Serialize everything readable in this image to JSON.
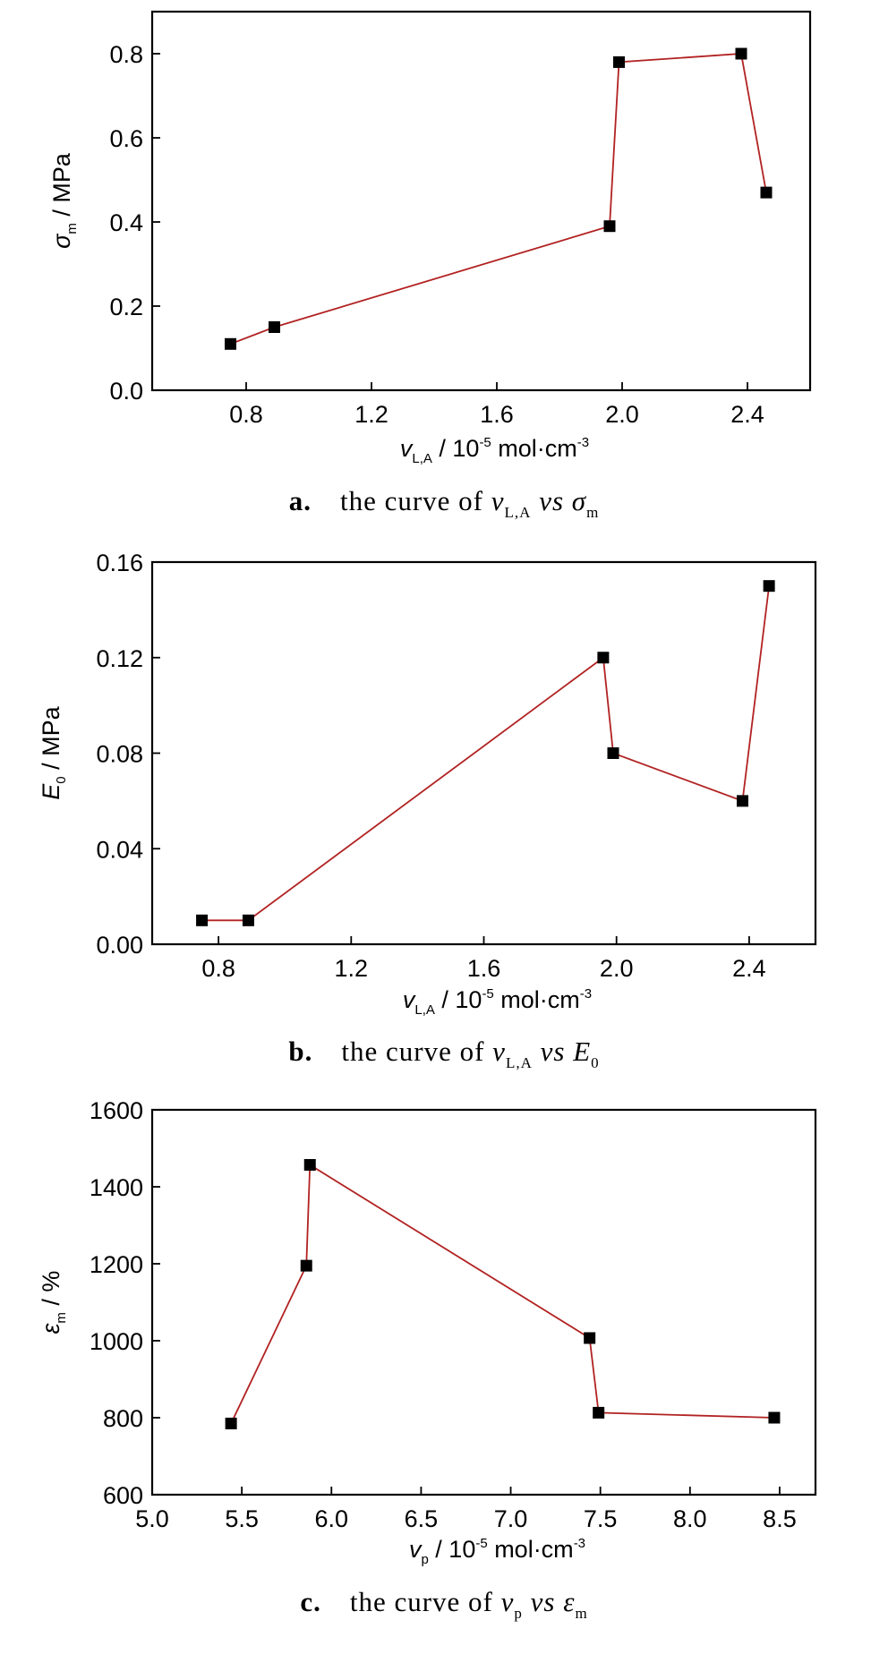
{
  "colors": {
    "line": "#b22222",
    "marker": "#000000",
    "frame": "#000000"
  },
  "chart_data": [
    {
      "type": "line",
      "x": [
        0.75,
        0.89,
        1.96,
        1.99,
        2.38,
        2.46
      ],
      "y": [
        0.11,
        0.15,
        0.39,
        0.78,
        0.8,
        0.47
      ],
      "xlim": [
        0.5,
        2.6
      ],
      "ylim": [
        0.0,
        0.9
      ],
      "xticks": [
        "0.8",
        "1.2",
        "1.6",
        "2.0",
        "2.4"
      ],
      "yticks": [
        "0.0",
        "0.2",
        "0.4",
        "0.6",
        "0.8"
      ],
      "xtick_values": [
        0.8,
        1.2,
        1.6,
        2.0,
        2.4
      ],
      "ytick_values": [
        0.0,
        0.2,
        0.4,
        0.6,
        0.8
      ],
      "xlabel": {
        "sym": "v",
        "sub": "L,A",
        "rest": " / 10",
        "sup": "-5",
        "unit": " mol·cm",
        "sup2": "-3"
      },
      "ylabel": {
        "sym": "σ",
        "sub": "m",
        "rest": " / MPa"
      },
      "caption": {
        "letter": "a.",
        "text": "the curve of ",
        "sym1": "ν",
        "sub1": "L,A",
        "vs": " vs ",
        "sym2": "σ",
        "sub2": "m"
      },
      "grid": false
    },
    {
      "type": "line",
      "x": [
        0.75,
        0.89,
        1.96,
        1.99,
        2.38,
        2.46
      ],
      "y": [
        0.01,
        0.01,
        0.12,
        0.08,
        0.06,
        0.15
      ],
      "xlim": [
        0.6,
        2.6
      ],
      "ylim": [
        0.0,
        0.16
      ],
      "xticks": [
        "0.8",
        "1.2",
        "1.6",
        "2.0",
        "2.4"
      ],
      "yticks": [
        "0.00",
        "0.04",
        "0.08",
        "0.12",
        "0.16"
      ],
      "xtick_values": [
        0.8,
        1.2,
        1.6,
        2.0,
        2.4
      ],
      "ytick_values": [
        0.0,
        0.04,
        0.08,
        0.12,
        0.16
      ],
      "xlabel": {
        "sym": "v",
        "sub": "L,A",
        "rest": " / 10",
        "sup": "-5",
        "unit": " mol·cm",
        "sup2": "-3"
      },
      "ylabel": {
        "sym": "E",
        "sub": "0",
        "rest": " / MPa"
      },
      "caption": {
        "letter": "b.",
        "text": "the curve of ",
        "sym1": "ν",
        "sub1": "L,A",
        "vs": " vs ",
        "sym2": "E",
        "sub2": "0"
      },
      "grid": false
    },
    {
      "type": "line",
      "x": [
        5.44,
        5.86,
        5.88,
        7.44,
        7.49,
        8.47
      ],
      "y": [
        785,
        1195,
        1457,
        1007,
        813,
        800
      ],
      "xlim": [
        5.0,
        8.7
      ],
      "ylim": [
        600,
        1600
      ],
      "xticks": [
        "5.0",
        "5.5",
        "6.0",
        "6.5",
        "7.0",
        "7.5",
        "8.0",
        "8.5"
      ],
      "yticks": [
        "600",
        "800",
        "1000",
        "1200",
        "1400",
        "1600"
      ],
      "xtick_values": [
        5.0,
        5.5,
        6.0,
        6.5,
        7.0,
        7.5,
        8.0,
        8.5
      ],
      "ytick_values": [
        600,
        800,
        1000,
        1200,
        1400,
        1600
      ],
      "xlabel": {
        "sym": "v",
        "sub": "p",
        "rest": " / 10",
        "sup": "-5",
        "unit": " mol·cm",
        "sup2": "-3"
      },
      "ylabel": {
        "sym": "ε",
        "sub": "m",
        "rest": " / %"
      },
      "caption": {
        "letter": "c.",
        "text": "the curve of ",
        "sym1": "ν",
        "sub1": "p",
        "vs": " vs ",
        "sym2": "ε",
        "sub2": "m"
      },
      "grid": false
    }
  ]
}
